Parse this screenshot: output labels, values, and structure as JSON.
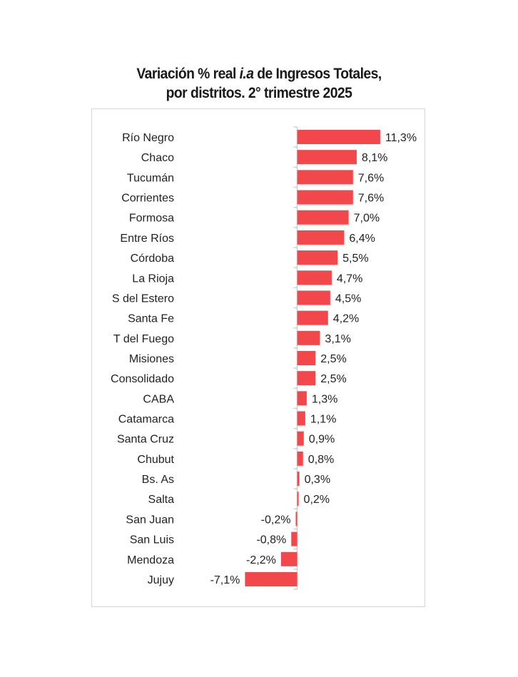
{
  "chart_data": {
    "type": "bar",
    "orientation": "horizontal",
    "title_parts": [
      "Variación % real ",
      "i.a",
      " de Ingresos Totales,",
      "por distritos. 2° trimestre 2025"
    ],
    "categories": [
      "Río Negro",
      "Chaco",
      "Tucumán",
      "Corrientes",
      "Formosa",
      "Entre Ríos",
      "Córdoba",
      "La Rioja",
      "S del Estero",
      "Santa Fe",
      "T del Fuego",
      "Misiones",
      "Consolidado",
      "CABA",
      "Catamarca",
      "Santa Cruz",
      "Chubut",
      "Bs. As",
      "Salta",
      "San Juan",
      "San Luis",
      "Mendoza",
      "Jujuy"
    ],
    "values": [
      11.3,
      8.1,
      7.6,
      7.6,
      7.0,
      6.4,
      5.5,
      4.7,
      4.5,
      4.2,
      3.1,
      2.5,
      2.5,
      1.3,
      1.1,
      0.9,
      0.8,
      0.3,
      0.2,
      -0.2,
      -0.8,
      -2.2,
      -7.1
    ],
    "data_labels": [
      "11,3%",
      "8,1%",
      "7,6%",
      "7,6%",
      "7,0%",
      "6,4%",
      "5,5%",
      "4,7%",
      "4,5%",
      "4,2%",
      "3,1%",
      "2,5%",
      "2,5%",
      "1,3%",
      "1,1%",
      "0,9%",
      "0,8%",
      "0,3%",
      "0,2%",
      "-0,2%",
      "-0,8%",
      "-2,2%",
      "-7,1%"
    ],
    "bar_color": "#f2474b",
    "grid": false,
    "legend": "none"
  }
}
